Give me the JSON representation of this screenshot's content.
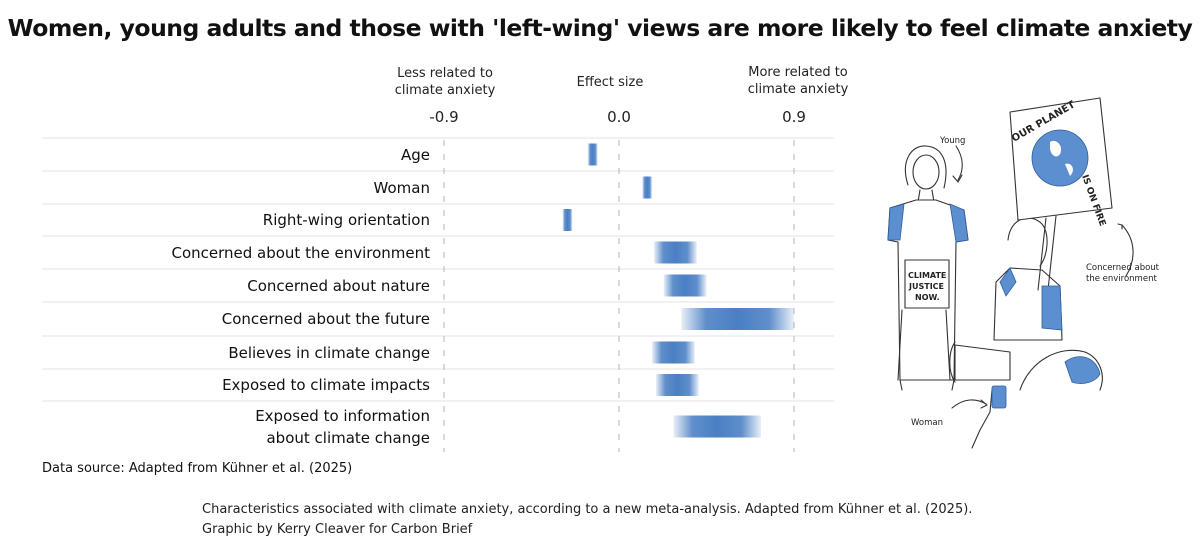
{
  "chart_data": {
    "type": "bar",
    "title": "Women, young adults and those with 'left-wing' views are more likely to feel climate anxiety",
    "xlabel": "Effect size",
    "x_left_label": "Less related to climate anxiety",
    "x_right_label": "More related to climate anxiety",
    "ticks": [
      {
        "value": -0.9,
        "label": "-0.9"
      },
      {
        "value": 0.0,
        "label": "0.0"
      },
      {
        "value": 0.9,
        "label": "0.9"
      }
    ],
    "xlim": [
      -0.9,
      0.9
    ],
    "categories": [
      "Age",
      "Woman",
      "Right-wing orientation",
      "Concerned about the environment",
      "Concerned about nature",
      "Concerned about the future",
      "Believes in climate change",
      "Exposed to climate impacts",
      "Exposed to information\nabout climate change"
    ],
    "ranges": [
      [
        -0.16,
        -0.11
      ],
      [
        0.12,
        0.17
      ],
      [
        -0.29,
        -0.24
      ],
      [
        0.18,
        0.4
      ],
      [
        0.23,
        0.45
      ],
      [
        0.32,
        0.9
      ],
      [
        0.17,
        0.39
      ],
      [
        0.19,
        0.41
      ],
      [
        0.28,
        0.73
      ]
    ],
    "bar_color": "#4a7fc4"
  },
  "data_source": "Data source: Adapted from Kühner et al. (2025)",
  "caption": "Characteristics associated with climate anxiety, according to a new meta-analysis. Adapted from Kühner et al. (2025). Graphic by Kerry Cleaver for Carbon Brief",
  "illustration": {
    "label_young": "Young",
    "label_concerned": "Concerned about the environment",
    "label_woman": "Woman",
    "sign_planet": "OUR PLANET IS ON FIRE",
    "sign_justice": "CLIMATE JUSTICE NOW.",
    "accent": "#5b8fd0"
  }
}
